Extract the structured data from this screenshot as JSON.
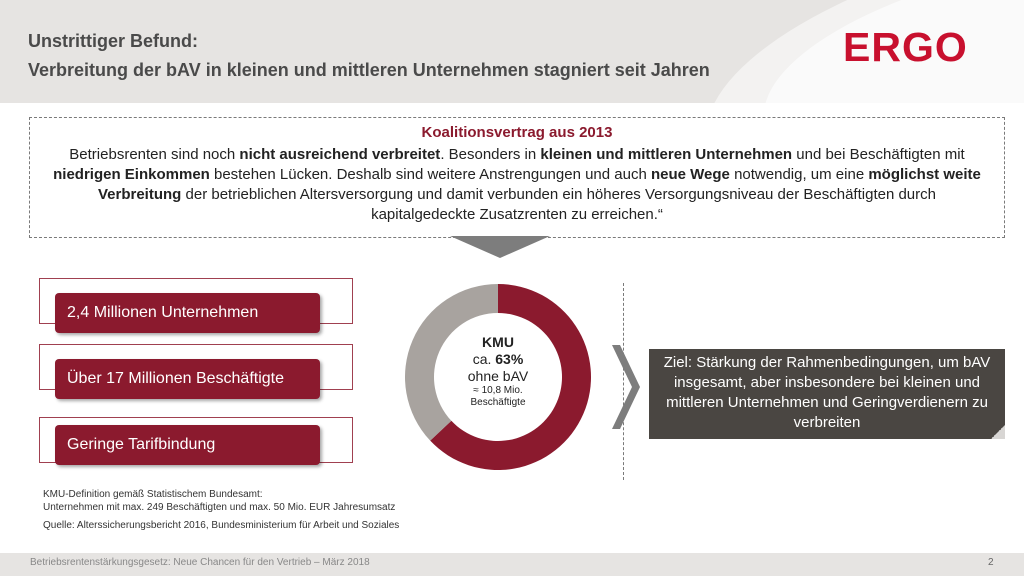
{
  "header": {
    "title_line1": "Unstrittiger Befund:",
    "title_line2": "Verbreitung der bAV in kleinen und mittleren Unternehmen stagniert seit Jahren",
    "logo": "ERGO"
  },
  "coalition": {
    "title": "Koalitionsvertrag aus 2013",
    "segments": [
      {
        "t": "Betriebsrenten sind noch ",
        "b": false
      },
      {
        "t": "nicht ausreichend verbreitet",
        "b": true
      },
      {
        "t": ". Besonders in ",
        "b": false
      },
      {
        "t": "kleinen und mittleren Unternehmen",
        "b": true
      },
      {
        "t": " und bei Beschäftigten mit ",
        "b": false
      },
      {
        "t": "niedrigen Einkommen",
        "b": true
      },
      {
        "t": " bestehen Lücken. Deshalb sind weitere Anstrengungen und auch ",
        "b": false
      },
      {
        "t": "neue Wege",
        "b": true
      },
      {
        "t": " notwendig, um eine ",
        "b": false
      },
      {
        "t": "möglichst weite Verbreitung",
        "b": true
      },
      {
        "t": " der betrieblichen Altersversorgung und damit verbunden ein höheres Versorgungsniveau der Beschäftigten durch kapitalgedeckte Zusatzrenten zu erreichen.“",
        "b": false
      }
    ]
  },
  "facts": [
    "2,4 Millionen Unternehmen",
    "Über 17 Millionen Beschäftigte",
    "Geringe Tarifbindung"
  ],
  "kmu": {
    "percent_without_bav": 63,
    "line1": "KMU",
    "line2_prefix": "ca. ",
    "line2_value": "63%",
    "line3": "ohne bAV",
    "line4": "≈ 10,8 Mio.",
    "line5": "Beschäftigte",
    "colors": {
      "without_bav": "#8b1a2e",
      "with_bav": "#a8a39f"
    }
  },
  "goal": {
    "text": "Ziel: Stärkung der Rahmenbedingungen, um bAV insgesamt, aber insbesondere bei kleinen und mittleren Unternehmen und Geringverdienern zu verbreiten"
  },
  "notes": {
    "definition_line1": "KMU-Definition gemäß Statistischem Bundesamt:",
    "definition_line2": "Unternehmen mit max. 249 Beschäftigten und max. 50 Mio. EUR Jahresumsatz",
    "source": "Quelle: Alterssicherungsbericht 2016, Bundesministerium für Arbeit und Soziales"
  },
  "footer": {
    "text": "Betriebsrentenstärkungsgesetz: Neue Chancen für den Vertrieb – März 2018",
    "page_number": "2"
  },
  "colors": {
    "brand_red": "#c8102e",
    "accent_dark_red": "#8b1a2e",
    "dark_box": "#4a4642",
    "band_grey": "#e6e4e2"
  }
}
